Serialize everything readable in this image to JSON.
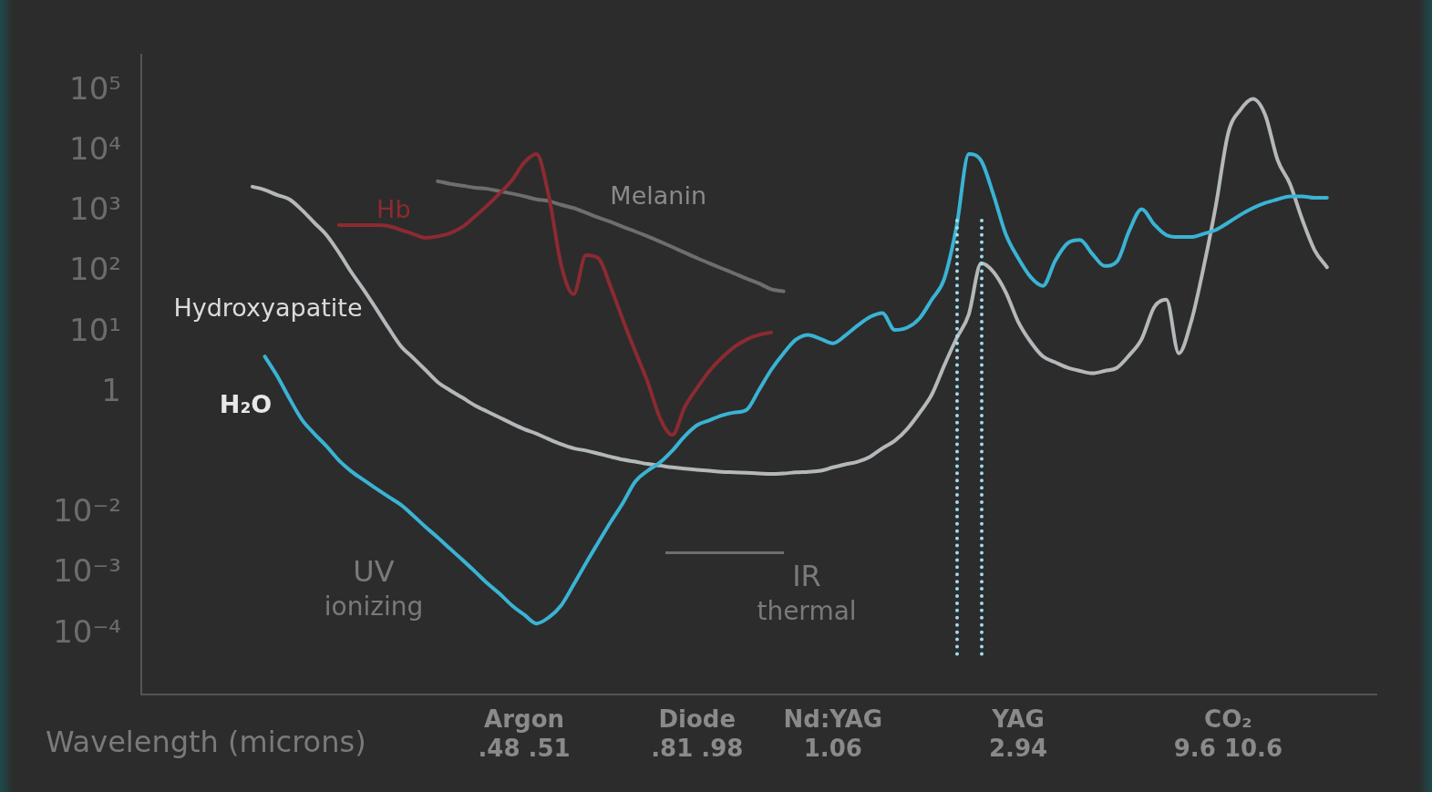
{
  "chart_data": {
    "type": "line",
    "xlabel": "Wavelength (microns)",
    "log": "y",
    "grid": false,
    "legend": false,
    "marker": "none",
    "line_style": "solid",
    "ylim": [
      1e-05,
      400000.0
    ],
    "categories": [
      null,
      null,
      null,
      null,
      null,
      null,
      null,
      null,
      null,
      null,
      null,
      null,
      null,
      null,
      null,
      null,
      null,
      null,
      null,
      null,
      null,
      null,
      null,
      null,
      null,
      null,
      null,
      null,
      null,
      null,
      null,
      "Argon\n.48 .51",
      null,
      null,
      null,
      null,
      null,
      null,
      null,
      null,
      null,
      null,
      null,
      null,
      null,
      "Diode\n.81 .98",
      null,
      null,
      null,
      null,
      null,
      null,
      null,
      null,
      null,
      null,
      "Nd:YAG\n1.06",
      null,
      null,
      null,
      null,
      null,
      null,
      null,
      null,
      null,
      null,
      null,
      null,
      null,
      null,
      "YAG\n2.94",
      null,
      null,
      null,
      null,
      null,
      null,
      null,
      null,
      null,
      null,
      null,
      null,
      null,
      null,
      null,
      null,
      "CO₂\n9.6 10.6",
      null,
      null,
      null,
      null,
      null,
      null,
      null,
      null,
      null,
      null,
      null,
      null
    ],
    "yticks": [
      {
        "value": 100000.0,
        "label": "10⁵"
      },
      {
        "value": 10000.0,
        "label": "10⁴"
      },
      {
        "value": 1000.0,
        "label": "10³"
      },
      {
        "value": 100,
        "label": "10²"
      },
      {
        "value": 10,
        "label": "10¹"
      },
      1,
      {
        "value": 0.01,
        "label": "10⁻²"
      },
      {
        "value": 0.001,
        "label": "10⁻³"
      },
      {
        "value": 0.0001,
        "label": "10⁻⁴"
      }
    ],
    "series": [
      {
        "name": "H₂O",
        "color": "#3ab3d4",
        "values": [
          null,
          null,
          null,
          null,
          null,
          null,
          null,
          null,
          null,
          null,
          4,
          1.9,
          0.8,
          0.36,
          0.21,
          0.13,
          0.076,
          0.05,
          0.036,
          0.026,
          0.019,
          0.014,
          0.0093,
          0.006,
          0.004,
          0.0026,
          0.0017,
          0.0011,
          0.0007,
          0.00047,
          0.0003,
          0.00021,
          0.00015,
          0.00019,
          0.0003,
          0.00066,
          0.0015,
          0.0033,
          0.0072,
          0.015,
          0.034,
          0.051,
          0.07,
          0.11,
          0.19,
          0.29,
          0.35,
          0.42,
          0.47,
          0.52,
          1.1,
          2.4,
          4.5,
          7.6,
          9.1,
          7.8,
          6.6,
          8.9,
          13,
          18,
          21,
          11,
          12,
          17,
          35,
          76,
          560,
          9000,
          7000,
          1900,
          420,
          170,
          83,
          59,
          155,
          300,
          340,
          200,
          126,
          150,
          490,
          1100,
          620,
          410,
          380,
          380,
          430,
          500,
          660,
          890,
          1150,
          1400,
          1600,
          1800,
          1800,
          1700,
          1700,
          null,
          null,
          null,
          null
        ]
      },
      {
        "name": "Hydroxyapatite",
        "color": "#b4b8ba",
        "values": [
          null,
          null,
          null,
          null,
          null,
          null,
          null,
          null,
          null,
          2600,
          2300,
          1900,
          1600,
          1070,
          660,
          410,
          210,
          100,
          51,
          25,
          12,
          6,
          3.8,
          2.4,
          1.5,
          1.1,
          0.83,
          0.62,
          0.49,
          0.39,
          0.31,
          0.25,
          0.21,
          0.17,
          0.14,
          0.12,
          0.11,
          0.098,
          0.087,
          0.078,
          0.072,
          0.066,
          0.062,
          0.058,
          0.055,
          0.053,
          0.051,
          0.049,
          0.048,
          0.047,
          0.046,
          0.045,
          0.046,
          0.048,
          0.049,
          0.051,
          0.058,
          0.065,
          0.072,
          0.087,
          0.12,
          0.16,
          0.25,
          0.46,
          0.93,
          2.8,
          7.9,
          20,
          140,
          100,
          46,
          15,
          7,
          4,
          3.2,
          2.6,
          2.3,
          2.1,
          2.3,
          2.6,
          4.2,
          7.8,
          26,
          35,
          4.5,
          15,
          117,
          1260,
          20000,
          49000,
          74000,
          40000,
          7200,
          2900,
          740,
          230,
          120,
          null,
          null,
          null,
          null
        ]
      },
      {
        "name": "Hb",
        "color": "#8c2a32",
        "values": [
          null,
          null,
          null,
          null,
          null,
          null,
          null,
          null,
          null,
          null,
          null,
          null,
          null,
          null,
          null,
          null,
          600,
          600,
          600,
          600,
          580,
          500,
          430,
          370,
          390,
          440,
          560,
          830,
          1260,
          2000,
          3300,
          6500,
          9000,
          1800,
          130,
          43,
          190,
          170,
          57,
          16,
          4.8,
          1.5,
          0.38,
          0.2,
          0.58,
          1.2,
          2.3,
          3.8,
          5.7,
          7.6,
          9.1,
          10,
          null,
          null,
          null,
          null,
          null,
          null,
          null,
          null,
          null,
          null,
          null,
          null,
          null,
          null,
          null,
          null,
          null,
          null,
          null,
          null,
          null,
          null,
          null,
          null,
          null,
          null,
          null,
          null,
          null,
          null,
          null,
          null,
          null,
          null,
          null,
          null,
          null,
          null,
          null,
          null,
          null,
          null,
          null,
          null,
          null,
          null,
          null,
          null,
          null
        ]
      },
      {
        "name": "Melanin",
        "color": "#6e6e6e",
        "values": [
          null,
          null,
          null,
          null,
          null,
          null,
          null,
          null,
          null,
          null,
          null,
          null,
          null,
          null,
          null,
          null,
          null,
          null,
          null,
          null,
          null,
          null,
          null,
          null,
          3200,
          2900,
          2700,
          2500,
          2400,
          2200,
          2000,
          1800,
          1600,
          1500,
          1300,
          1150,
          960,
          800,
          680,
          560,
          470,
          390,
          320,
          260,
          210,
          170,
          140,
          115,
          95,
          78,
          65,
          52,
          48,
          null,
          null,
          null,
          null,
          null,
          null,
          null,
          null,
          null,
          null,
          null,
          null,
          null,
          null,
          null,
          null,
          null,
          null,
          null,
          null,
          null,
          null,
          null,
          null,
          null,
          null,
          null,
          null,
          null,
          null,
          null,
          null,
          null,
          null,
          null,
          null,
          null,
          null,
          null,
          null,
          null,
          null,
          null,
          null,
          null,
          null,
          null,
          null
        ]
      }
    ],
    "annotations": [
      "UV\nionizing",
      "IR\nthermal"
    ]
  }
}
